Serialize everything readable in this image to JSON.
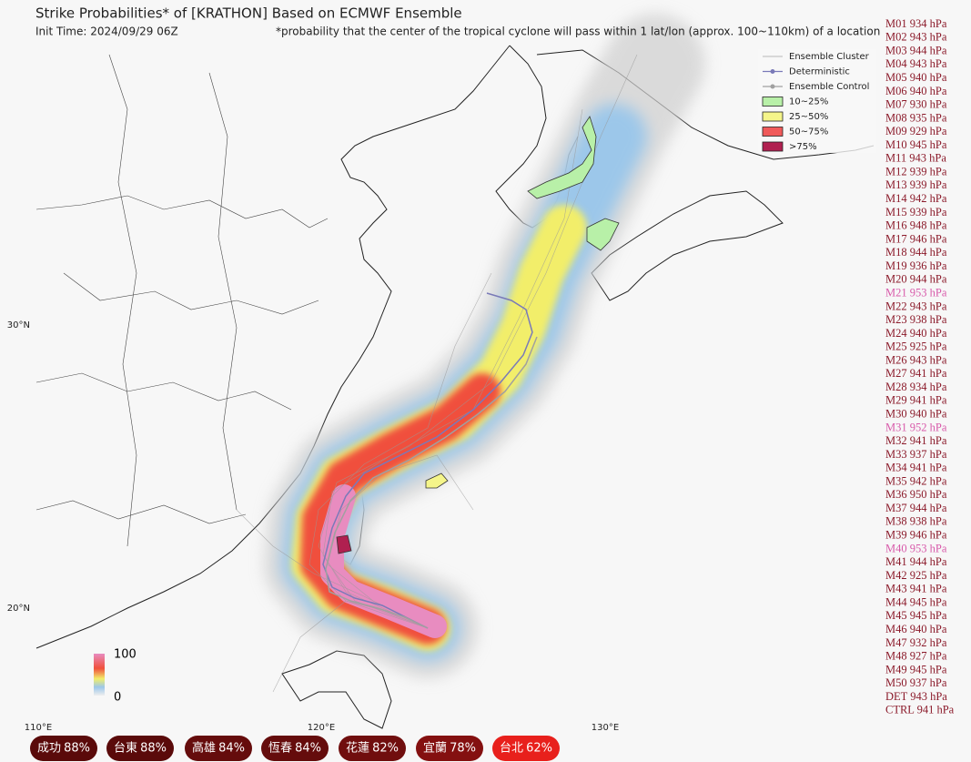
{
  "header": {
    "title": "Strike Probabilities* of [KRATHON] Based on ECMWF Ensemble",
    "init_time": "Init Time: 2024/09/29 06Z",
    "note": "*probability that the center of the tropical cyclone will pass within 1 lat/lon (approx. 100~110km) of a location"
  },
  "legend": [
    {
      "label": "Ensemble Cluster",
      "kind": "line",
      "color": "#b8b8b8"
    },
    {
      "label": "Deterministic",
      "kind": "marker",
      "color": "#7a7ab8"
    },
    {
      "label": "Ensemble Control",
      "kind": "marker",
      "color": "#a0a0a0"
    },
    {
      "label": "10~25%",
      "kind": "box",
      "color": "#b8f0a8"
    },
    {
      "label": "25~50%",
      "kind": "box",
      "color": "#f5f58a"
    },
    {
      "label": "50~75%",
      "kind": "box",
      "color": "#f05a5a"
    },
    {
      "label": ">75%",
      "kind": "box",
      "color": "#b02050"
    }
  ],
  "colorbar": {
    "max_label": "100",
    "min_label": "0"
  },
  "lat_labels": [
    "30°N",
    "20°N"
  ],
  "lon_labels": [
    "110°E",
    "120°E",
    "130°E"
  ],
  "members": [
    {
      "label": "M01 934 hPa"
    },
    {
      "label": "M02 943 hPa"
    },
    {
      "label": "M03 944 hPa"
    },
    {
      "label": "M04 943 hPa"
    },
    {
      "label": "M05 940 hPa"
    },
    {
      "label": "M06 940 hPa"
    },
    {
      "label": "M07 930 hPa"
    },
    {
      "label": "M08 935 hPa"
    },
    {
      "label": "M09 929 hPa"
    },
    {
      "label": "M10 945 hPa"
    },
    {
      "label": "M11 943 hPa"
    },
    {
      "label": "M12 939 hPa"
    },
    {
      "label": "M13 939 hPa"
    },
    {
      "label": "M14 942 hPa"
    },
    {
      "label": "M15 939 hPa"
    },
    {
      "label": "M16 948 hPa"
    },
    {
      "label": "M17 946 hPa"
    },
    {
      "label": "M18 944 hPa"
    },
    {
      "label": "M19 936 hPa"
    },
    {
      "label": "M20 944 hPa"
    },
    {
      "label": "M21 953 hPa",
      "color": "#d85aaa"
    },
    {
      "label": "M22 943 hPa"
    },
    {
      "label": "M23 938 hPa"
    },
    {
      "label": "M24 940 hPa"
    },
    {
      "label": "M25 925 hPa"
    },
    {
      "label": "M26 943 hPa"
    },
    {
      "label": "M27 941 hPa"
    },
    {
      "label": "M28 934 hPa"
    },
    {
      "label": "M29 941 hPa"
    },
    {
      "label": "M30 940 hPa"
    },
    {
      "label": "M31 952 hPa",
      "color": "#d85aaa"
    },
    {
      "label": "M32 941 hPa"
    },
    {
      "label": "M33 937 hPa"
    },
    {
      "label": "M34 941 hPa"
    },
    {
      "label": "M35 942 hPa"
    },
    {
      "label": "M36 950 hPa"
    },
    {
      "label": "M37 944 hPa"
    },
    {
      "label": "M38 938 hPa"
    },
    {
      "label": "M39 946 hPa"
    },
    {
      "label": "M40 953 hPa",
      "color": "#d85aaa"
    },
    {
      "label": "M41 944 hPa"
    },
    {
      "label": "M42 925 hPa"
    },
    {
      "label": "M43 941 hPa"
    },
    {
      "label": "M44 945 hPa"
    },
    {
      "label": "M45 945 hPa"
    },
    {
      "label": "M46 940 hPa"
    },
    {
      "label": "M47 932 hPa"
    },
    {
      "label": "M48 927 hPa"
    },
    {
      "label": "M49 945 hPa"
    },
    {
      "label": "M50 937 hPa"
    },
    {
      "label": "DET 943 hPa"
    },
    {
      "label": "CTRL 941 hPa"
    }
  ],
  "badges": [
    {
      "name": "成功",
      "label": "88%",
      "color": "#5a0a0a"
    },
    {
      "name": "台東",
      "label": "88%",
      "color": "#5a0a0a"
    },
    {
      "name": "高雄",
      "label": "84%",
      "color": "#650c0c"
    },
    {
      "name": "恆春",
      "label": "84%",
      "color": "#650c0c"
    },
    {
      "name": "花蓮",
      "label": "82%",
      "color": "#700e0e"
    },
    {
      "name": "宜蘭",
      "label": "78%",
      "color": "#841010"
    },
    {
      "name": "台北",
      "label": "62%",
      "color": "#e8201c"
    }
  ]
}
